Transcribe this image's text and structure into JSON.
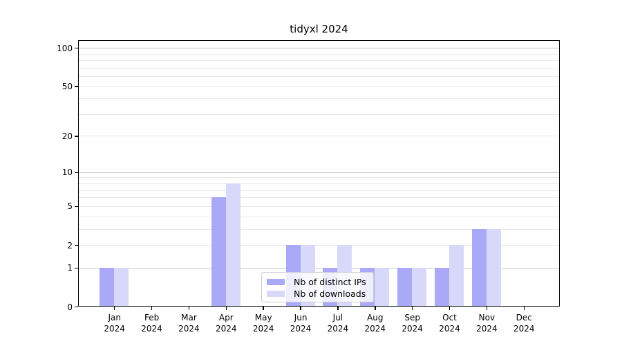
{
  "chart_data": {
    "type": "bar",
    "title": "tidyxl 2024",
    "categories": [
      "Jan 2024",
      "Feb 2024",
      "Mar 2024",
      "Apr 2024",
      "May 2024",
      "Jun 2024",
      "Jul 2024",
      "Aug 2024",
      "Sep 2024",
      "Oct 2024",
      "Nov 2024",
      "Dec 2024"
    ],
    "series": [
      {
        "name": "Nb of distinct IPs",
        "values": [
          1,
          0,
          0,
          6,
          0,
          2,
          1,
          1,
          1,
          1,
          3,
          0
        ],
        "color": "#a9a9f8"
      },
      {
        "name": "Nb of downloads",
        "values": [
          1,
          0,
          0,
          8,
          0,
          2,
          2,
          1,
          1,
          2,
          3,
          0
        ],
        "color": "#d8d9fa"
      }
    ],
    "xlabel": "",
    "ylabel": "",
    "yscale": "log1p",
    "y_ticks": [
      0,
      1,
      2,
      5,
      10,
      20,
      50,
      100
    ],
    "y_major_gridlines": [
      1,
      10,
      100
    ],
    "y_minor_gridlines": [
      2,
      3,
      4,
      5,
      6,
      7,
      8,
      9,
      20,
      30,
      40,
      50,
      60,
      70,
      80,
      90
    ],
    "ylim": [
      0,
      115
    ],
    "grid": true,
    "legend_position": "lower center"
  },
  "colors": {
    "grid_major": "#c8c8c8",
    "grid_minor": "#e8e8e8",
    "axis_line": "#000000",
    "legend_border": "#cccccc",
    "text": "#000000"
  }
}
